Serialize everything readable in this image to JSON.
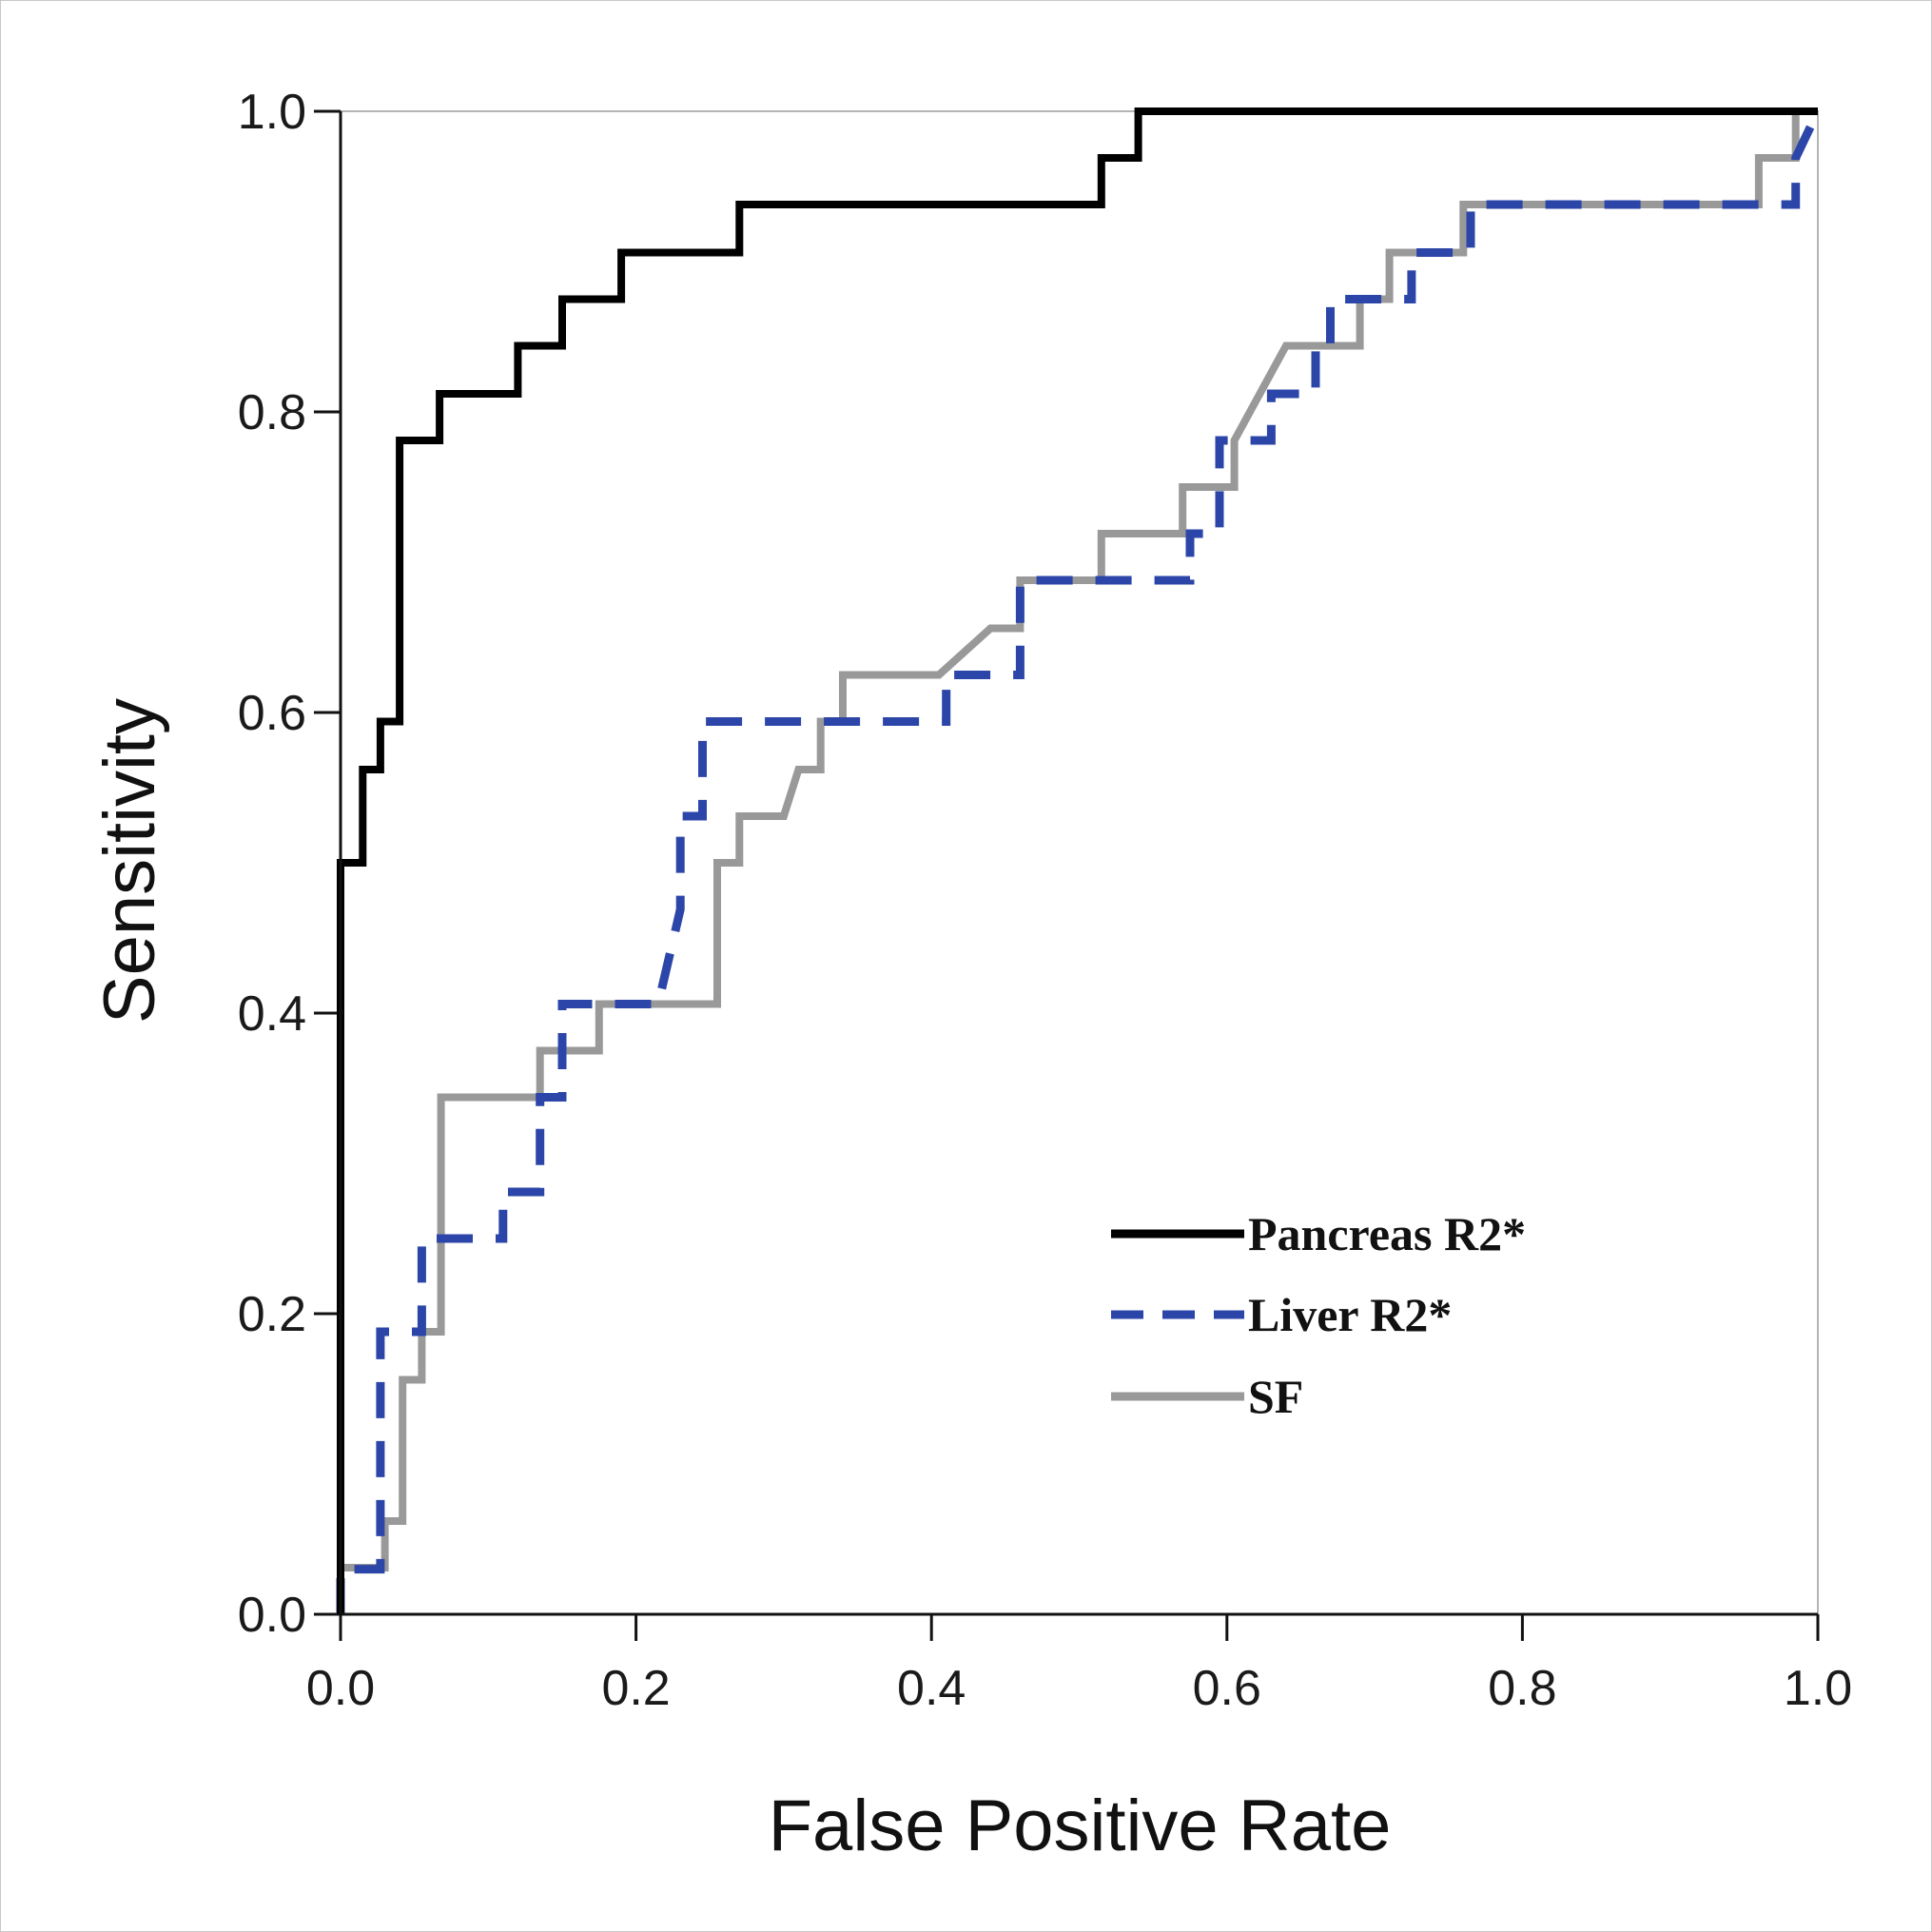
{
  "chart_data": {
    "type": "line",
    "title": "",
    "xlabel": "False Positive Rate",
    "ylabel": "Sensitivity",
    "xlim": [
      0,
      1
    ],
    "ylim": [
      0,
      1
    ],
    "x_ticks": [
      "0.0",
      "0.2",
      "0.4",
      "0.6",
      "0.8",
      "1.0"
    ],
    "y_ticks": [
      "0.0",
      "0.2",
      "0.4",
      "0.6",
      "0.8",
      "1.0"
    ],
    "grid": false,
    "legend_position": "bottom-right",
    "series": [
      {
        "name": "Pancreas R2*",
        "color": "#000000",
        "style": "solid",
        "x": [
          0.0,
          0.0,
          0.0,
          0.015,
          0.015,
          0.027,
          0.027,
          0.04,
          0.04,
          0.067,
          0.067,
          0.12,
          0.12,
          0.15,
          0.15,
          0.19,
          0.19,
          0.27,
          0.27,
          0.515,
          0.515,
          0.54,
          0.54,
          1.0
        ],
        "y": [
          0.0,
          0.03,
          0.5,
          0.5,
          0.562,
          0.562,
          0.594,
          0.594,
          0.781,
          0.781,
          0.812,
          0.812,
          0.844,
          0.844,
          0.875,
          0.875,
          0.906,
          0.906,
          0.938,
          0.938,
          0.969,
          0.969,
          1.0,
          1.0
        ]
      },
      {
        "name": "Liver R2*",
        "color": "#2b46a8",
        "style": "dashed",
        "x": [
          0.0,
          0.0,
          0.027,
          0.027,
          0.055,
          0.055,
          0.11,
          0.11,
          0.135,
          0.135,
          0.15,
          0.15,
          0.18,
          0.18,
          0.215,
          0.23,
          0.23,
          0.245,
          0.245,
          0.41,
          0.41,
          0.46,
          0.46,
          0.575,
          0.575,
          0.595,
          0.595,
          0.63,
          0.63,
          0.66,
          0.66,
          0.67,
          0.67,
          0.725,
          0.725,
          0.765,
          0.765,
          0.8,
          0.8,
          0.985,
          0.985,
          1.0
        ],
        "y": [
          0.0,
          0.03,
          0.03,
          0.188,
          0.188,
          0.25,
          0.25,
          0.281,
          0.281,
          0.344,
          0.344,
          0.406,
          0.406,
          0.406,
          0.406,
          0.469,
          0.531,
          0.531,
          0.594,
          0.594,
          0.625,
          0.625,
          0.688,
          0.688,
          0.719,
          0.719,
          0.781,
          0.781,
          0.812,
          0.812,
          0.844,
          0.844,
          0.875,
          0.875,
          0.906,
          0.906,
          0.938,
          0.938,
          0.938,
          0.938,
          0.969,
          1.0
        ]
      },
      {
        "name": "SF",
        "color": "#999999",
        "style": "solid",
        "x": [
          0.0,
          0.0,
          0.03,
          0.03,
          0.042,
          0.042,
          0.055,
          0.055,
          0.068,
          0.068,
          0.135,
          0.135,
          0.175,
          0.175,
          0.255,
          0.255,
          0.27,
          0.27,
          0.3,
          0.3,
          0.31,
          0.325,
          0.325,
          0.34,
          0.34,
          0.405,
          0.44,
          0.46,
          0.46,
          0.515,
          0.515,
          0.57,
          0.57,
          0.605,
          0.605,
          0.64,
          0.69,
          0.69,
          0.71,
          0.71,
          0.76,
          0.76,
          0.96,
          0.96,
          0.985,
          0.985
        ],
        "y": [
          0.0,
          0.031,
          0.031,
          0.062,
          0.062,
          0.156,
          0.156,
          0.188,
          0.188,
          0.344,
          0.344,
          0.375,
          0.375,
          0.406,
          0.406,
          0.5,
          0.5,
          0.531,
          0.531,
          0.531,
          0.562,
          0.562,
          0.594,
          0.594,
          0.625,
          0.625,
          0.656,
          0.656,
          0.688,
          0.688,
          0.719,
          0.719,
          0.75,
          0.75,
          0.781,
          0.844,
          0.844,
          0.875,
          0.875,
          0.906,
          0.906,
          0.938,
          0.938,
          0.969,
          0.969,
          1.0
        ]
      }
    ]
  }
}
